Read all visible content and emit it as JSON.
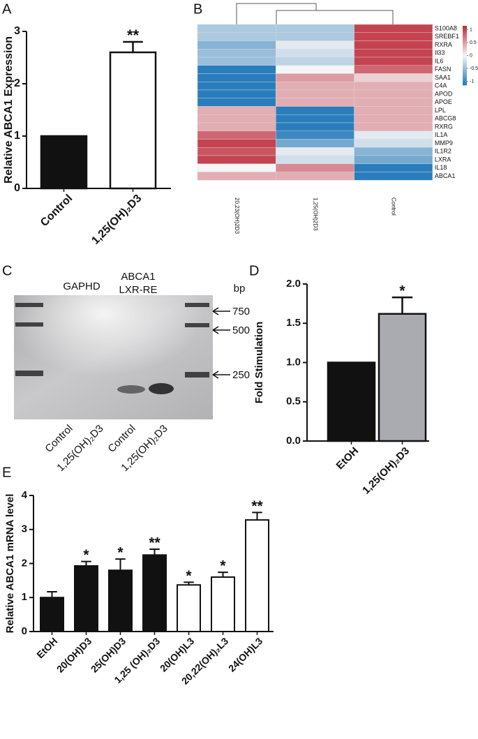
{
  "chart_data": [
    {
      "type": "bar",
      "panel": "A",
      "ylabel": "Relative ABCA1 Expression",
      "categories": [
        "Control",
        "1,25(OH)₂D3"
      ],
      "values": [
        1,
        2.6
      ],
      "errors": [
        null,
        0.2
      ],
      "significance": [
        null,
        "**"
      ],
      "colors": [
        "#111111",
        "#ffffff"
      ],
      "ylim": [
        0,
        3
      ],
      "yticks": [
        0,
        1,
        2,
        3
      ]
    },
    {
      "type": "heatmap",
      "panel": "B",
      "columns": [
        "20,23(OH)2D3",
        "1,25(OH)2D3",
        "Control"
      ],
      "rows": [
        "S100A8",
        "SREBF1",
        "RXRA",
        "Il33",
        "IL6",
        "FASN",
        "SAA1",
        "C4A",
        "APOD",
        "APOE",
        "LPL",
        "ABCG8",
        "RXRG",
        "IL1A",
        "MMP9",
        "IL1R2",
        "LXRA",
        "IL18",
        "ABCA1"
      ],
      "values": [
        [
          -0.4,
          -0.4,
          1.0
        ],
        [
          -0.4,
          -0.4,
          1.0
        ],
        [
          -0.6,
          -0.1,
          1.0
        ],
        [
          -0.5,
          -0.2,
          1.0
        ],
        [
          -0.5,
          -0.3,
          1.0
        ],
        [
          -1.1,
          0.0,
          0.8
        ],
        [
          -1.1,
          0.5,
          0.2
        ],
        [
          -1.1,
          0.4,
          0.4
        ],
        [
          -1.1,
          0.4,
          0.4
        ],
        [
          -1.1,
          0.4,
          0.4
        ],
        [
          0.4,
          -1.1,
          0.4
        ],
        [
          0.4,
          -1.1,
          0.4
        ],
        [
          0.4,
          -1.1,
          0.4
        ],
        [
          0.8,
          -1.0,
          -0.1
        ],
        [
          1.0,
          -0.7,
          -0.2
        ],
        [
          0.9,
          -0.1,
          -0.6
        ],
        [
          1.0,
          -0.2,
          -0.7
        ],
        [
          0.0,
          0.6,
          -1.1
        ],
        [
          0.4,
          0.4,
          -1.1
        ]
      ],
      "zlim": [
        -1.15,
        1.15
      ],
      "zticks": [
        1,
        0.5,
        0,
        -0.5,
        -1
      ],
      "colors": [
        "#2178b9",
        "#f5f5f5",
        "#be2837"
      ]
    },
    {
      "type": "bar",
      "panel": "D",
      "ylabel": "Fold Stimulation",
      "categories": [
        "EtOH",
        "1,25(OH)₂D3"
      ],
      "values": [
        1,
        1.62
      ],
      "errors": [
        null,
        0.21
      ],
      "significance": [
        null,
        "*"
      ],
      "colors": [
        "#111111",
        "#a9abb1"
      ],
      "ylim": [
        0,
        2
      ],
      "yticks": [
        {
          "value": 0,
          "label": "0.0"
        },
        {
          "value": 0.5,
          "label": "0.5"
        },
        {
          "value": 1,
          "label": "1.0"
        },
        {
          "value": 1.5,
          "label": "1.5"
        },
        {
          "value": 2,
          "label": "2.0"
        }
      ]
    },
    {
      "type": "bar",
      "panel": "E",
      "ylabel": "Relative ABCA1 mRNA level",
      "categories": [
        "EtOH",
        "20(OH)D3",
        "25(OH)D3",
        "1,25 (OH)₂D3",
        "20(OH)L3",
        "20,22(OH)₂L3",
        "24(OH)L3"
      ],
      "values": [
        1.0,
        1.93,
        1.8,
        2.25,
        1.37,
        1.6,
        3.28
      ],
      "errors": [
        0.17,
        0.13,
        0.33,
        0.17,
        0.08,
        0.14,
        0.22
      ],
      "significance": [
        null,
        "*",
        "*",
        "**",
        "*",
        "*",
        "**"
      ],
      "colors": [
        "#111111",
        "#111111",
        "#111111",
        "#111111",
        "#ffffff",
        "#ffffff",
        "#ffffff"
      ],
      "ylim": [
        0,
        4
      ],
      "yticks": [
        0,
        1,
        2,
        3,
        4
      ]
    }
  ],
  "gel": {
    "panel": "C",
    "gapdh_label": "GAPHD",
    "abca1_label": [
      "ABCA1",
      "LXR-RE"
    ],
    "size_unit": "bp",
    "markers": [
      750,
      500,
      250
    ],
    "lane_labels": [
      "Control",
      "1,25(OH)₂D3",
      "Control",
      "1,25(OH)₂D3"
    ]
  }
}
